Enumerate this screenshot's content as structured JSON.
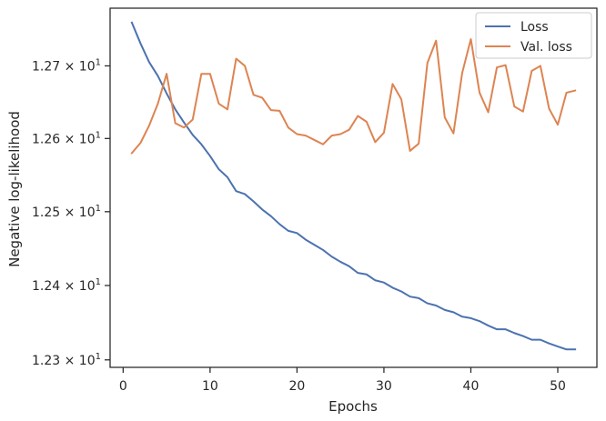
{
  "chart_data": {
    "type": "line",
    "title": "",
    "xlabel": "Epochs",
    "ylabel": "Negative log-likelihood",
    "xlim": [
      -1.5,
      54.5
    ],
    "ylim": [
      12.29,
      12.78
    ],
    "y_scale": "log",
    "grid": false,
    "legend_position": "top-right",
    "x_ticks": [
      0,
      10,
      20,
      30,
      40,
      50
    ],
    "y_ticks": [
      {
        "value": 12.3,
        "mantissa": "1.23",
        "base": "10",
        "exp": "1"
      },
      {
        "value": 12.4,
        "mantissa": "1.24",
        "base": "10",
        "exp": "1"
      },
      {
        "value": 12.5,
        "mantissa": "1.25",
        "base": "10",
        "exp": "1"
      },
      {
        "value": 12.6,
        "mantissa": "1.26",
        "base": "10",
        "exp": "1"
      },
      {
        "value": 12.7,
        "mantissa": "1.27",
        "base": "10",
        "exp": "1"
      }
    ],
    "x": [
      1,
      2,
      3,
      4,
      5,
      6,
      7,
      8,
      9,
      10,
      11,
      12,
      13,
      14,
      15,
      16,
      17,
      18,
      19,
      20,
      21,
      22,
      23,
      24,
      25,
      26,
      27,
      28,
      29,
      30,
      31,
      32,
      33,
      34,
      35,
      36,
      37,
      38,
      39,
      40,
      41,
      42,
      43,
      44,
      45,
      46,
      47,
      48,
      49,
      50,
      51,
      52
    ],
    "series": [
      {
        "name": "Loss",
        "color": "#4c72b0",
        "values": [
          12.76,
          12.731,
          12.705,
          12.686,
          12.662,
          12.64,
          12.622,
          12.605,
          12.592,
          12.576,
          12.558,
          12.547,
          12.528,
          12.524,
          12.514,
          12.503,
          12.494,
          12.483,
          12.474,
          12.471,
          12.462,
          12.455,
          12.448,
          12.439,
          12.432,
          12.426,
          12.417,
          12.415,
          12.407,
          12.404,
          12.397,
          12.392,
          12.385,
          12.383,
          12.376,
          12.373,
          12.367,
          12.364,
          12.358,
          12.356,
          12.352,
          12.346,
          12.341,
          12.341,
          12.336,
          12.332,
          12.327,
          12.327,
          12.322,
          12.318,
          12.314,
          12.314
        ]
      },
      {
        "name": "Val. loss",
        "color": "#dd8452",
        "values": [
          12.58,
          12.594,
          12.618,
          12.648,
          12.689,
          12.621,
          12.615,
          12.626,
          12.689,
          12.689,
          12.648,
          12.64,
          12.71,
          12.7,
          12.66,
          12.656,
          12.639,
          12.638,
          12.615,
          12.606,
          12.604,
          12.598,
          12.592,
          12.604,
          12.606,
          12.612,
          12.631,
          12.623,
          12.595,
          12.608,
          12.675,
          12.654,
          12.583,
          12.593,
          12.704,
          12.735,
          12.629,
          12.607,
          12.69,
          12.737,
          12.663,
          12.636,
          12.698,
          12.701,
          12.644,
          12.637,
          12.693,
          12.7,
          12.641,
          12.619,
          12.663,
          12.666
        ]
      }
    ]
  }
}
